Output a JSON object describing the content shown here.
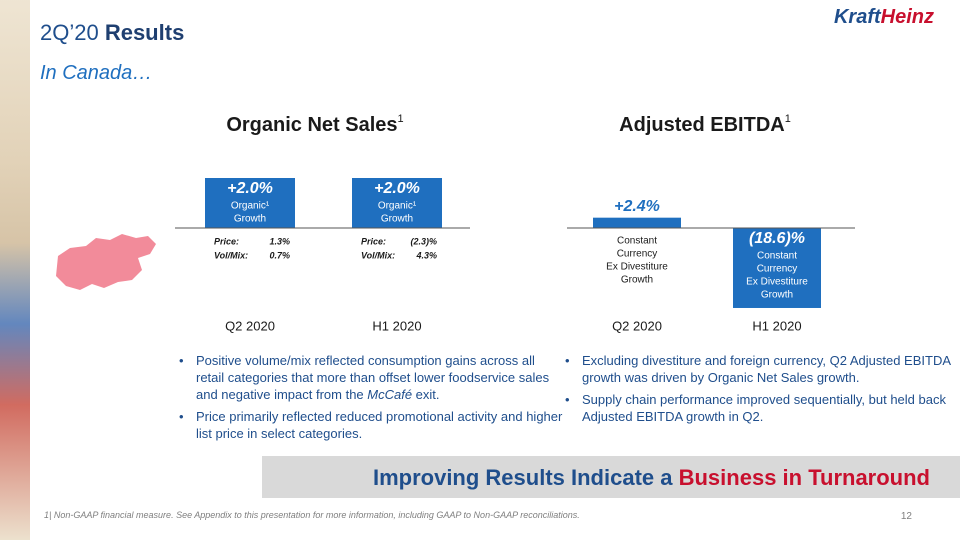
{
  "header": {
    "title": "2Q’20 ",
    "title_bold": "Results",
    "subtitle": "In Canada…"
  },
  "logo": {
    "left": "Kraft",
    "right": "Heinz"
  },
  "chart_data": [
    {
      "type": "bar",
      "title": "Organic Net Sales",
      "title_sup": "1",
      "categories": [
        "Q2 2020",
        "H1 2020"
      ],
      "values": [
        2.0,
        2.0
      ],
      "value_labels": [
        "+2.0%",
        "+2.0%"
      ],
      "bar_notes": [
        [
          "Organic¹",
          "Growth"
        ],
        [
          "Organic¹",
          "Growth"
        ]
      ],
      "annotations": [
        [
          [
            "Price:",
            "1.3%"
          ],
          [
            "Vol/Mix:",
            "0.7%"
          ]
        ],
        [
          [
            "Price:",
            "(2.3)%"
          ],
          [
            "Vol/Mix:",
            "4.3%"
          ]
        ]
      ],
      "color": "#1f6fbf",
      "ylim": [
        0,
        2.4
      ]
    },
    {
      "type": "bar",
      "title": "Adjusted EBITDA",
      "title_sup": "1",
      "categories": [
        "Q2 2020",
        "H1 2020"
      ],
      "values": [
        2.4,
        -18.6
      ],
      "value_labels": [
        "+2.4%",
        "(18.6)%"
      ],
      "bar_notes": [
        [
          "Constant",
          "Currency",
          "Ex Divestiture",
          "Growth"
        ],
        [
          "Constant",
          "Currency",
          "Ex Divestiture",
          "Growth"
        ]
      ],
      "color": "#1f6fbf",
      "ylim": [
        -20,
        4
      ]
    }
  ],
  "bullets_left": [
    [
      "Positive volume/mix reflected consumption gains across all retail categories that more than offset lower foodservice sales and negative impact from the ",
      "McCafé",
      " exit."
    ],
    [
      "Price primarily reflected reduced promotional activity and higher list price in select categories."
    ]
  ],
  "bullets_right": [
    [
      "Excluding divestiture and foreign currency, Q2 Adjusted EBITDA growth was driven by Organic Net Sales growth."
    ],
    [
      "Supply chain performance improved sequentially, but held back Adjusted EBITDA growth in Q2."
    ]
  ],
  "banner": {
    "text": "Improving Results Indicate a ",
    "highlight": "Business in Turnaround"
  },
  "footnote": "1| Non-GAAP financial measure. See Appendix to this presentation for more information, including GAAP to Non-GAAP reconciliations.",
  "page_number": "12"
}
